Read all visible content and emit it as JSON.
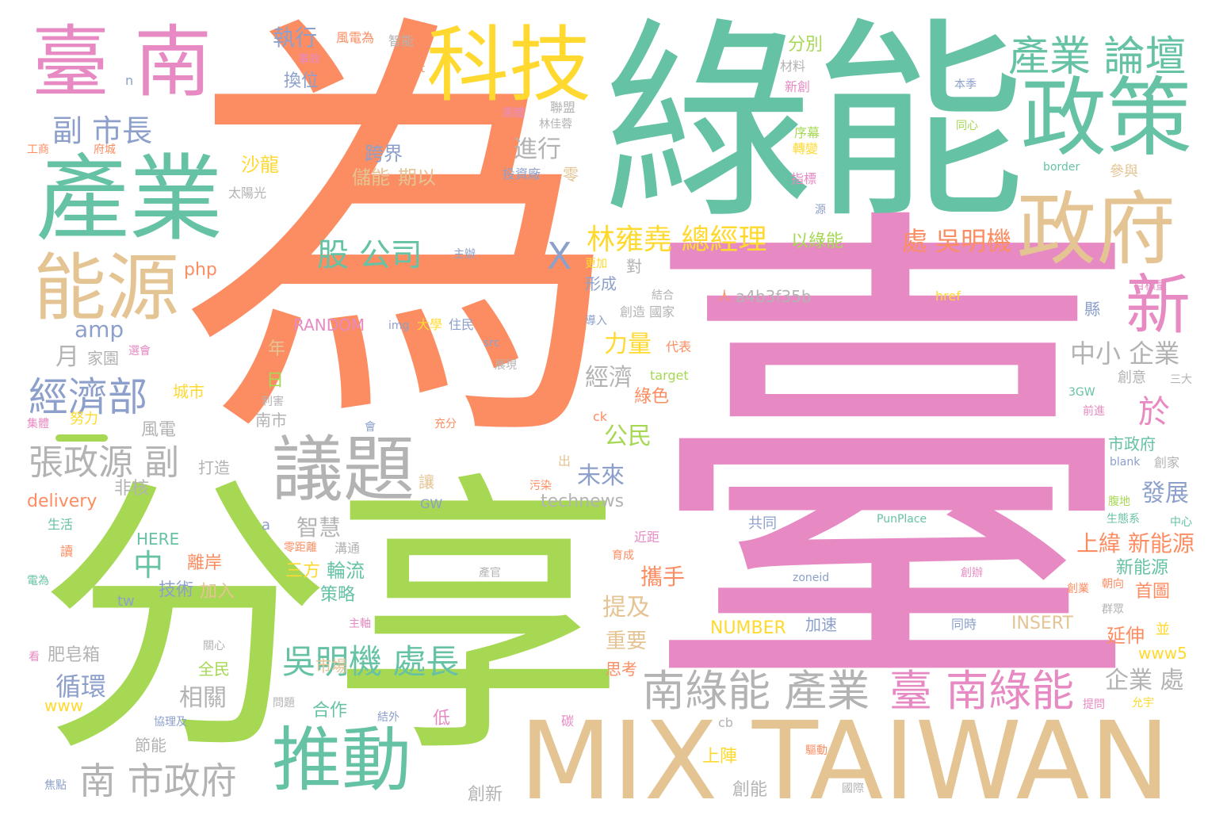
{
  "colors": {
    "background": "#ffffff",
    "palette": [
      "#fc8d62",
      "#66c2a5",
      "#e78ac3",
      "#a6d854",
      "#ffd92f",
      "#e5c494",
      "#b3b3b3",
      "#8da0cb"
    ]
  },
  "words": [
    {
      "text": "為",
      "color": "#fc8d62"
    },
    {
      "text": "臺",
      "color": "#e78ac3"
    },
    {
      "text": "綠能",
      "color": "#66c2a5"
    },
    {
      "text": "分享",
      "color": "#a6d854"
    },
    {
      "text": "MIX TAIWAN",
      "color": "#e5c494"
    },
    {
      "text": "科技",
      "color": "#ffd92f"
    },
    {
      "text": "臺 南",
      "color": "#e78ac3"
    },
    {
      "text": "產業",
      "color": "#66c2a5"
    },
    {
      "text": "政策",
      "color": "#66c2a5"
    },
    {
      "text": "政府",
      "color": "#e5c494"
    },
    {
      "text": "產業 論壇",
      "color": "#66c2a5"
    },
    {
      "text": "能源",
      "color": "#e5c494"
    },
    {
      "text": "議題",
      "color": "#b3b3b3"
    },
    {
      "text": "推動",
      "color": "#66c2a5"
    },
    {
      "text": "新",
      "color": "#e78ac3"
    },
    {
      "text": "南綠能 產業",
      "color": "#b3b3b3"
    },
    {
      "text": "臺 南綠能",
      "color": "#e78ac3"
    },
    {
      "text": "南 市政府",
      "color": "#b3b3b3"
    },
    {
      "text": "經濟部",
      "color": "#8da0cb"
    },
    {
      "text": "張政源 副",
      "color": "#b3b3b3"
    },
    {
      "text": "吳明機 處長",
      "color": "#66c2a5"
    },
    {
      "text": "副 市長",
      "color": "#8da0cb"
    },
    {
      "text": "股 公司",
      "color": "#66c2a5"
    },
    {
      "text": "林雍堯 總經理",
      "color": "#ffd92f"
    },
    {
      "text": "處 吳明機",
      "color": "#fc8d62"
    },
    {
      "text": "X",
      "color": "#8da0cb"
    },
    {
      "text": "中",
      "color": "#66c2a5"
    },
    {
      "text": "執行",
      "color": "#8da0cb"
    },
    {
      "text": "換位",
      "color": "#8da0cb"
    },
    {
      "text": "進行",
      "color": "#b3b3b3"
    },
    {
      "text": "跨界",
      "color": "#8da0cb"
    },
    {
      "text": "儲能",
      "color": "#e5c494"
    },
    {
      "text": "期以",
      "color": "#e5c494"
    },
    {
      "text": "沙龍",
      "color": "#ffd92f"
    },
    {
      "text": "力量",
      "color": "#ffd92f"
    },
    {
      "text": "經濟",
      "color": "#b3b3b3"
    },
    {
      "text": "公民",
      "color": "#a6d854"
    },
    {
      "text": "未來",
      "color": "#8da0cb"
    },
    {
      "text": "於",
      "color": "#e78ac3"
    },
    {
      "text": "中小 企業",
      "color": "#b3b3b3"
    },
    {
      "text": "發展",
      "color": "#8da0cb"
    },
    {
      "text": "上緯 新能源",
      "color": "#fc8d62"
    },
    {
      "text": "新能源",
      "color": "#66c2a5"
    },
    {
      "text": "首圖",
      "color": "#fc8d62"
    },
    {
      "text": "延伸",
      "color": "#fc8d62"
    },
    {
      "text": "企業 處",
      "color": "#b3b3b3"
    },
    {
      "text": "提及",
      "color": "#e5c494"
    },
    {
      "text": "攜手",
      "color": "#fc8d62"
    },
    {
      "text": "重要",
      "color": "#e5c494"
    },
    {
      "text": "智慧",
      "color": "#b3b3b3"
    },
    {
      "text": "輪流",
      "color": "#66c2a5"
    },
    {
      "text": "三方",
      "color": "#ffd92f"
    },
    {
      "text": "策略",
      "color": "#66c2a5"
    },
    {
      "text": "技術",
      "color": "#8da0cb"
    },
    {
      "text": "加入",
      "color": "#e5c494"
    },
    {
      "text": "離岸",
      "color": "#fc8d62"
    },
    {
      "text": "循環",
      "color": "#8da0cb"
    },
    {
      "text": "相關",
      "color": "#b3b3b3"
    },
    {
      "text": "肥皂箱",
      "color": "#b3b3b3"
    },
    {
      "text": "月",
      "color": "#b3b3b3"
    },
    {
      "text": "amp",
      "color": "#8da0cb"
    },
    {
      "text": "分別",
      "color": "#a6d854"
    },
    {
      "text": "以綠能",
      "color": "#a6d854"
    },
    {
      "text": "非核",
      "color": "#b3b3b3"
    },
    {
      "text": "風電",
      "color": "#b3b3b3"
    },
    {
      "text": "delivery",
      "color": "#fc8d62"
    },
    {
      "text": "HERE",
      "color": "#66c2a5"
    },
    {
      "text": "technews",
      "color": "#b3b3b3"
    },
    {
      "text": "NUMBER",
      "color": "#ffd92f"
    },
    {
      "text": "INSERT",
      "color": "#e5c494"
    },
    {
      "text": "RANDOM",
      "color": "#e78ac3"
    },
    {
      "text": "a4b3f35b",
      "color": "#b3b3b3"
    },
    {
      "text": "www5",
      "color": "#ffd92f"
    },
    {
      "text": "php",
      "color": "#fc8d62"
    },
    {
      "text": "www",
      "color": "#ffd92f"
    },
    {
      "text": "合作",
      "color": "#66c2a5"
    },
    {
      "text": "創新",
      "color": "#b3b3b3"
    },
    {
      "text": "創能",
      "color": "#b3b3b3"
    },
    {
      "text": "上陣",
      "color": "#ffd92f"
    },
    {
      "text": "思考",
      "color": "#fc8d62"
    },
    {
      "text": "全民",
      "color": "#a6d854"
    },
    {
      "text": "節能",
      "color": "#b3b3b3"
    },
    {
      "text": "市場",
      "color": "#e5c494"
    },
    {
      "text": "低",
      "color": "#e78ac3"
    },
    {
      "text": "城市",
      "color": "#ffd92f"
    },
    {
      "text": "形成",
      "color": "#8da0cb"
    },
    {
      "text": "綠色",
      "color": "#fc8d62"
    },
    {
      "text": "太陽光",
      "color": "#b3b3b3"
    },
    {
      "text": "打造",
      "color": "#b3b3b3"
    },
    {
      "text": "家園",
      "color": "#b3b3b3"
    },
    {
      "text": "努力",
      "color": "#ffd92f"
    },
    {
      "text": "日",
      "color": "#a6d854"
    },
    {
      "text": "年",
      "color": "#e5c494"
    },
    {
      "text": "南市",
      "color": "#b3b3b3"
    },
    {
      "text": "加速",
      "color": "#8da0cb"
    },
    {
      "text": "市政府",
      "color": "#66c2a5"
    },
    {
      "text": "共同",
      "color": "#8da0cb"
    },
    {
      "text": "創意",
      "color": "#b3b3b3"
    },
    {
      "text": "零",
      "color": "#e5c494"
    },
    {
      "text": "投資廠",
      "color": "#8da0cb"
    },
    {
      "text": "參與",
      "color": "#e5c494"
    },
    {
      "text": "指標",
      "color": "#e78ac3"
    },
    {
      "text": "轉變",
      "color": "#ffd92f"
    },
    {
      "text": "序幕",
      "color": "#a6d854"
    },
    {
      "text": "聯盟",
      "color": "#b3b3b3"
    },
    {
      "text": "團體",
      "color": "#e78ac3"
    },
    {
      "text": "林佳蓉",
      "color": "#b3b3b3"
    },
    {
      "text": "風電為",
      "color": "#fc8d62"
    },
    {
      "text": "智能",
      "color": "#b3b3b3"
    },
    {
      "text": "事故",
      "color": "#e78ac3"
    },
    {
      "text": "材料",
      "color": "#b3b3b3"
    },
    {
      "text": "新創",
      "color": "#e78ac3"
    },
    {
      "text": "本季",
      "color": "#8da0cb"
    },
    {
      "text": "同心",
      "color": "#a6d854"
    },
    {
      "text": "工商",
      "color": "#fc8d62"
    },
    {
      "text": "府城",
      "color": "#fc8d62"
    },
    {
      "text": "border",
      "color": "#66c2a5"
    },
    {
      "text": "目標量",
      "color": "#e78ac3"
    },
    {
      "text": "主辦",
      "color": "#8da0cb"
    },
    {
      "text": "更加",
      "color": "#ffd92f"
    },
    {
      "text": "對",
      "color": "#b3b3b3"
    },
    {
      "text": "人",
      "color": "#fc8d62"
    },
    {
      "text": "href",
      "color": "#ffd92f"
    },
    {
      "text": "縣",
      "color": "#8da0cb"
    },
    {
      "text": "導入",
      "color": "#8da0cb"
    },
    {
      "text": "創造 國家",
      "color": "#b3b3b3"
    },
    {
      "text": "結合",
      "color": "#b3b3b3"
    },
    {
      "text": "代表",
      "color": "#fc8d62"
    },
    {
      "text": "target",
      "color": "#a6d854"
    },
    {
      "text": "展現",
      "color": "#b3b3b3"
    },
    {
      "text": "src",
      "color": "#8da0cb"
    },
    {
      "text": "img",
      "color": "#8da0cb"
    },
    {
      "text": "大學",
      "color": "#ffd92f"
    },
    {
      "text": "住民",
      "color": "#8da0cb"
    },
    {
      "text": "民生",
      "color": "#fc8d62"
    },
    {
      "text": "alt",
      "color": "#fc8d62"
    },
    {
      "text": "n",
      "color": "#8da0cb"
    },
    {
      "text": "ck",
      "color": "#fc8d62"
    },
    {
      "text": "3GW",
      "color": "#66c2a5"
    },
    {
      "text": "三大",
      "color": "#b3b3b3"
    },
    {
      "text": "前進",
      "color": "#e78ac3"
    },
    {
      "text": "blank",
      "color": "#8da0cb"
    },
    {
      "text": "創家",
      "color": "#b3b3b3"
    },
    {
      "text": "腹地",
      "color": "#a6d854"
    },
    {
      "text": "生態系",
      "color": "#66c2a5"
    },
    {
      "text": "中心",
      "color": "#66c2a5"
    },
    {
      "text": "PunPlace",
      "color": "#66c2a5"
    },
    {
      "text": "zoneid",
      "color": "#8da0cb"
    },
    {
      "text": "創業",
      "color": "#fc8d62"
    },
    {
      "text": "朝向",
      "color": "#fc8d62"
    },
    {
      "text": "群眾",
      "color": "#b3b3b3"
    },
    {
      "text": "同時",
      "color": "#8da0cb"
    },
    {
      "text": "並",
      "color": "#ffd92f"
    },
    {
      "text": "近距",
      "color": "#e78ac3"
    },
    {
      "text": "育成",
      "color": "#fc8d62"
    },
    {
      "text": "GW",
      "color": "#8da0cb"
    },
    {
      "text": "污染",
      "color": "#fc8d62"
    },
    {
      "text": "出",
      "color": "#e5c494"
    },
    {
      "text": "讓",
      "color": "#e5c494"
    },
    {
      "text": "a",
      "color": "#8da0cb"
    },
    {
      "text": "零距離",
      "color": "#fc8d62"
    },
    {
      "text": "溝通",
      "color": "#b3b3b3"
    },
    {
      "text": "tw",
      "color": "#8da0cb"
    },
    {
      "text": "生活",
      "color": "#66c2a5"
    },
    {
      "text": "讀",
      "color": "#fc8d62"
    },
    {
      "text": "電為",
      "color": "#66c2a5"
    },
    {
      "text": "主軸",
      "color": "#e78ac3"
    },
    {
      "text": "關心",
      "color": "#b3b3b3"
    },
    {
      "text": "看",
      "color": "#e78ac3"
    },
    {
      "text": "問題",
      "color": "#b3b3b3"
    },
    {
      "text": "協理及",
      "color": "#8da0cb"
    },
    {
      "text": "結外",
      "color": "#8da0cb"
    },
    {
      "text": "焦點",
      "color": "#8da0cb"
    },
    {
      "text": "會",
      "color": "#8da0cb"
    },
    {
      "text": "充分",
      "color": "#fc8d62"
    },
    {
      "text": "利害",
      "color": "#b3b3b3"
    },
    {
      "text": "集體",
      "color": "#e78ac3"
    },
    {
      "text": "選會",
      "color": "#e78ac3"
    },
    {
      "text": "cb",
      "color": "#b3b3b3"
    },
    {
      "text": "碳",
      "color": "#e78ac3"
    },
    {
      "text": "提問",
      "color": "#e78ac3"
    },
    {
      "text": "國際",
      "color": "#b3b3b3"
    },
    {
      "text": "產官",
      "color": "#b3b3b3"
    },
    {
      "text": "創辦",
      "color": "#e78ac3"
    },
    {
      "text": "驅動",
      "color": "#fc8d62"
    },
    {
      "text": "允宇",
      "color": "#ffd92f"
    },
    {
      "text": "源",
      "color": "#8da0cb"
    }
  ]
}
